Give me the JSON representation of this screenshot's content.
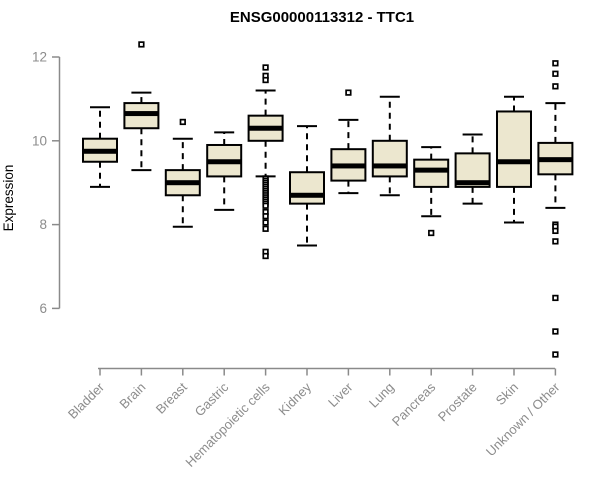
{
  "colors": {
    "background": "#ffffff",
    "box_fill": "#ece7cf",
    "box_border": "#000000",
    "median_line": "#000000",
    "whisker": "#000000",
    "outlier_fill": "#ffffff",
    "outlier_border": "#000000",
    "axis_line": "#8a8a8a",
    "axis_text": "#8c8c8c",
    "title_text": "#000000"
  },
  "chart_data": {
    "type": "boxplot",
    "title": "ENSG00000113312 - TTC1",
    "xlabel": "",
    "ylabel": "Expression",
    "ylim": [
      6,
      12
    ],
    "yticks": [
      6,
      8,
      10,
      12
    ],
    "grid": false,
    "legend": "none",
    "x_tick_rotation_deg": 45,
    "categories": [
      "Bladder",
      "Brain",
      "Breast",
      "Gastric",
      "Hematopoietic cells",
      "Kidney",
      "Liver",
      "Lung",
      "Pancreas",
      "Prostate",
      "Skin",
      "Unknown / Other"
    ],
    "boxes": [
      {
        "label": "Bladder",
        "whisker_low": 8.9,
        "q1": 9.5,
        "median": 9.75,
        "q3": 10.05,
        "whisker_high": 10.8,
        "outliers": []
      },
      {
        "label": "Brain",
        "whisker_low": 9.3,
        "q1": 10.3,
        "median": 10.65,
        "q3": 10.9,
        "whisker_high": 11.15,
        "outliers": [
          12.3
        ]
      },
      {
        "label": "Breast",
        "whisker_low": 7.95,
        "q1": 8.7,
        "median": 9.0,
        "q3": 9.3,
        "whisker_high": 10.05,
        "outliers": [
          10.45
        ]
      },
      {
        "label": "Gastric",
        "whisker_low": 8.35,
        "q1": 9.15,
        "median": 9.5,
        "q3": 9.9,
        "whisker_high": 10.2,
        "outliers": []
      },
      {
        "label": "Hematopoietic cells",
        "whisker_low": 9.15,
        "q1": 10.0,
        "median": 10.3,
        "q3": 10.6,
        "whisker_high": 11.2,
        "outliers": [
          11.75,
          11.55,
          11.45,
          9.1,
          9.05,
          9.0,
          8.95,
          8.9,
          8.85,
          8.8,
          8.75,
          8.7,
          8.65,
          8.6,
          8.55,
          8.5,
          8.45,
          8.3,
          8.2,
          8.05,
          7.9,
          7.35,
          7.25
        ]
      },
      {
        "label": "Kidney",
        "whisker_low": 7.5,
        "q1": 8.5,
        "median": 8.7,
        "q3": 9.25,
        "whisker_high": 10.35,
        "outliers": []
      },
      {
        "label": "Liver",
        "whisker_low": 8.75,
        "q1": 9.05,
        "median": 9.4,
        "q3": 9.8,
        "whisker_high": 10.5,
        "outliers": [
          11.15
        ]
      },
      {
        "label": "Lung",
        "whisker_low": 8.7,
        "q1": 9.15,
        "median": 9.4,
        "q3": 10.0,
        "whisker_high": 11.05,
        "outliers": []
      },
      {
        "label": "Pancreas",
        "whisker_low": 8.2,
        "q1": 8.9,
        "median": 9.3,
        "q3": 9.55,
        "whisker_high": 9.85,
        "outliers": [
          7.8
        ]
      },
      {
        "label": "Prostate",
        "whisker_low": 8.5,
        "q1": 8.9,
        "median": 9.0,
        "q3": 9.7,
        "whisker_high": 10.15,
        "outliers": []
      },
      {
        "label": "Skin",
        "whisker_low": 8.05,
        "q1": 8.9,
        "median": 9.5,
        "q3": 10.7,
        "whisker_high": 11.05,
        "outliers": []
      },
      {
        "label": "Unknown / Other",
        "whisker_low": 8.4,
        "q1": 9.2,
        "median": 9.55,
        "q3": 9.95,
        "whisker_high": 10.9,
        "outliers": [
          11.85,
          11.6,
          11.3,
          8.0,
          7.95,
          7.85,
          7.6,
          6.25,
          5.45,
          4.9
        ]
      }
    ]
  }
}
